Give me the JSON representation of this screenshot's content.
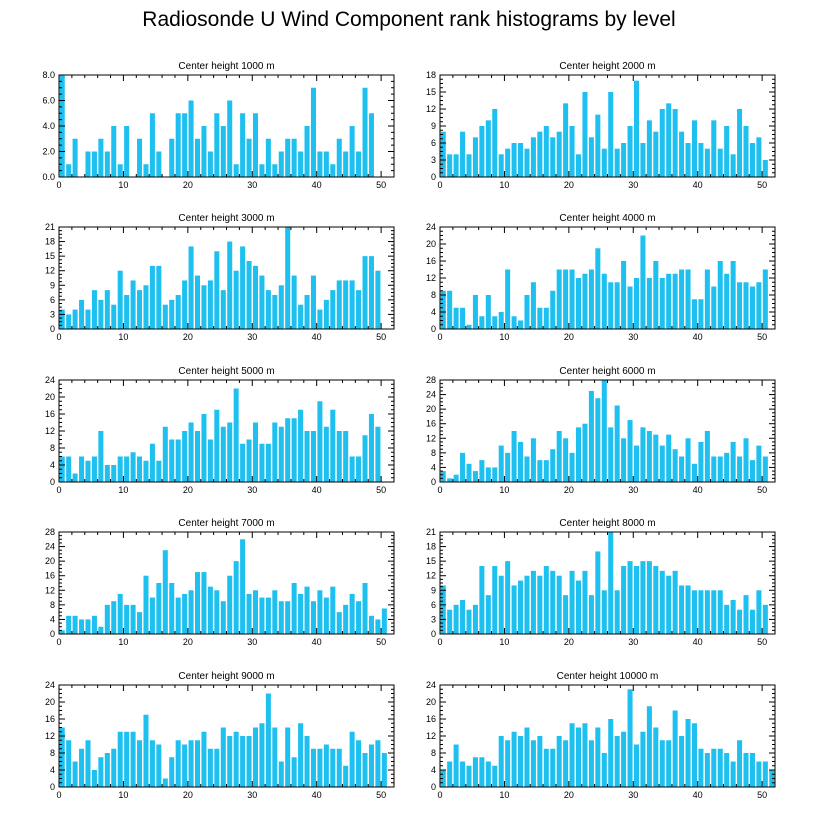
{
  "title": "Radiosonde U Wind Component rank histograms by level",
  "colors": {
    "bar": "#1ec0f0",
    "axis": "#000000",
    "background": "#ffffff"
  },
  "chart_data": [
    {
      "type": "bar",
      "title": "Center height 1000 m",
      "xlim": [
        0,
        52
      ],
      "ylim": [
        0,
        8
      ],
      "xticks": [
        0,
        10,
        20,
        30,
        40,
        50
      ],
      "yticks": [
        "0.0",
        "2.0",
        "4.0",
        "6.0",
        "8.0"
      ],
      "values": [
        8,
        1,
        3,
        0,
        2,
        2,
        3,
        2,
        4,
        1,
        4,
        0,
        3,
        1,
        5,
        2,
        0,
        3,
        5,
        5,
        6,
        3,
        4,
        2,
        5,
        4,
        6,
        1,
        5,
        3,
        5,
        1,
        3,
        1,
        2,
        3,
        3,
        2,
        4,
        7,
        2,
        2,
        1,
        3,
        2,
        4,
        2,
        7,
        5,
        0,
        0
      ]
    },
    {
      "type": "bar",
      "title": "Center height 2000 m",
      "xlim": [
        0,
        52
      ],
      "ylim": [
        0,
        18
      ],
      "xticks": [
        0,
        10,
        20,
        30,
        40,
        50
      ],
      "yticks": [
        "0",
        "3",
        "6",
        "9",
        "12",
        "15",
        "18"
      ],
      "values": [
        8,
        4,
        4,
        8,
        4,
        7,
        9,
        10,
        12,
        4,
        5,
        6,
        6,
        5,
        7,
        8,
        9,
        7,
        8,
        13,
        9,
        4,
        15,
        7,
        11,
        5,
        15,
        5,
        6,
        9,
        17,
        6,
        10,
        8,
        12,
        13,
        12,
        8,
        6,
        10,
        6,
        5,
        10,
        5,
        9,
        4,
        12,
        9,
        6,
        7,
        3
      ]
    },
    {
      "type": "bar",
      "title": "Center height 3000 m",
      "xlim": [
        0,
        52
      ],
      "ylim": [
        0,
        21
      ],
      "xticks": [
        0,
        10,
        20,
        30,
        40,
        50
      ],
      "yticks": [
        "0",
        "3",
        "6",
        "9",
        "12",
        "15",
        "18",
        "21"
      ],
      "values": [
        4,
        3,
        4,
        6,
        4,
        8,
        6,
        8,
        5,
        12,
        7,
        10,
        8,
        9,
        13,
        13,
        5,
        6,
        7,
        10,
        17,
        11,
        9,
        10,
        16,
        8,
        18,
        12,
        17,
        14,
        13,
        11,
        8,
        7,
        9,
        21,
        11,
        5,
        7,
        11,
        4,
        6,
        8,
        10,
        10,
        10,
        8,
        15,
        15,
        12,
        0
      ]
    },
    {
      "type": "bar",
      "title": "Center height 4000 m",
      "xlim": [
        0,
        52
      ],
      "ylim": [
        0,
        24
      ],
      "xticks": [
        0,
        10,
        20,
        30,
        40,
        50
      ],
      "yticks": [
        "0",
        "4",
        "8",
        "12",
        "16",
        "20",
        "24"
      ],
      "values": [
        9,
        9,
        5,
        5,
        1,
        8,
        3,
        8,
        3,
        4,
        14,
        3,
        2,
        8,
        11,
        5,
        5,
        9,
        14,
        14,
        14,
        12,
        13,
        14,
        19,
        13,
        11,
        11,
        16,
        10,
        12,
        22,
        12,
        16,
        12,
        13,
        13,
        14,
        14,
        7,
        7,
        14,
        10,
        16,
        13,
        16,
        11,
        11,
        10,
        11,
        14
      ]
    },
    {
      "type": "bar",
      "title": "Center height 5000 m",
      "xlim": [
        0,
        52
      ],
      "ylim": [
        0,
        24
      ],
      "xticks": [
        0,
        10,
        20,
        30,
        40,
        50
      ],
      "yticks": [
        "0",
        "4",
        "8",
        "12",
        "16",
        "20",
        "24"
      ],
      "values": [
        6,
        6,
        2,
        6,
        5,
        6,
        12,
        4,
        4,
        6,
        6,
        7,
        6,
        5,
        9,
        5,
        13,
        10,
        10,
        12,
        14,
        12,
        16,
        10,
        17,
        13,
        14,
        22,
        9,
        10,
        14,
        9,
        9,
        14,
        13,
        15,
        15,
        17,
        12,
        12,
        19,
        13,
        17,
        12,
        12,
        6,
        6,
        11,
        16,
        13,
        0
      ]
    },
    {
      "type": "bar",
      "title": "Center height 6000 m",
      "xlim": [
        0,
        52
      ],
      "ylim": [
        0,
        28
      ],
      "xticks": [
        0,
        10,
        20,
        30,
        40,
        50
      ],
      "yticks": [
        "0",
        "4",
        "8",
        "12",
        "16",
        "20",
        "24",
        "28"
      ],
      "values": [
        3,
        1,
        2,
        8,
        5,
        3,
        6,
        4,
        4,
        10,
        8,
        14,
        11,
        7,
        12,
        6,
        6,
        9,
        14,
        12,
        8,
        15,
        16,
        25,
        23,
        28,
        15,
        21,
        12,
        17,
        10,
        15,
        14,
        13,
        10,
        13,
        9,
        7,
        12,
        5,
        11,
        14,
        7,
        7,
        8,
        11,
        7,
        12,
        6,
        10,
        7
      ]
    },
    {
      "type": "bar",
      "title": "Center height 7000 m",
      "xlim": [
        0,
        52
      ],
      "ylim": [
        0,
        28
      ],
      "xticks": [
        0,
        10,
        20,
        30,
        40,
        50
      ],
      "yticks": [
        "0",
        "4",
        "8",
        "12",
        "16",
        "20",
        "24",
        "28"
      ],
      "values": [
        1,
        5,
        5,
        4,
        4,
        5,
        2,
        8,
        9,
        11,
        8,
        8,
        6,
        16,
        10,
        14,
        23,
        14,
        10,
        11,
        12,
        17,
        17,
        13,
        12,
        9,
        16,
        20,
        26,
        11,
        12,
        10,
        10,
        12,
        9,
        9,
        14,
        11,
        13,
        9,
        12,
        10,
        13,
        6,
        8,
        11,
        9,
        14,
        5,
        4,
        7
      ]
    },
    {
      "type": "bar",
      "title": "Center height 8000 m",
      "xlim": [
        0,
        52
      ],
      "ylim": [
        0,
        21
      ],
      "xticks": [
        0,
        10,
        20,
        30,
        40,
        50
      ],
      "yticks": [
        "0",
        "3",
        "6",
        "9",
        "12",
        "15",
        "18",
        "21"
      ],
      "values": [
        10,
        5,
        6,
        7,
        5,
        6,
        14,
        8,
        14,
        12,
        15,
        10,
        11,
        12,
        13,
        12,
        14,
        13,
        12,
        8,
        13,
        11,
        13,
        8,
        17,
        9,
        21,
        9,
        14,
        15,
        14,
        15,
        15,
        14,
        13,
        12,
        13,
        10,
        10,
        9,
        9,
        9,
        9,
        9,
        6,
        7,
        5,
        8,
        5,
        9,
        6
      ]
    },
    {
      "type": "bar",
      "title": "Center height 9000 m",
      "xlim": [
        0,
        52
      ],
      "ylim": [
        0,
        24
      ],
      "xticks": [
        0,
        10,
        20,
        30,
        40,
        50
      ],
      "yticks": [
        "0",
        "4",
        "8",
        "12",
        "16",
        "20",
        "24"
      ],
      "values": [
        14,
        11,
        6,
        9,
        11,
        4,
        7,
        8,
        9,
        13,
        13,
        13,
        11,
        17,
        11,
        10,
        2,
        7,
        11,
        10,
        11,
        11,
        13,
        9,
        9,
        14,
        12,
        13,
        12,
        12,
        14,
        15,
        22,
        14,
        6,
        14,
        7,
        15,
        12,
        9,
        9,
        10,
        9,
        9,
        5,
        13,
        11,
        8,
        10,
        11,
        8
      ]
    },
    {
      "type": "bar",
      "title": "Center height 10000 m",
      "xlim": [
        0,
        52
      ],
      "ylim": [
        0,
        24
      ],
      "xticks": [
        0,
        10,
        20,
        30,
        40,
        50
      ],
      "yticks": [
        "0",
        "4",
        "8",
        "12",
        "16",
        "20",
        "24"
      ],
      "values": [
        4,
        6,
        10,
        6,
        5,
        7,
        7,
        6,
        5,
        12,
        11,
        13,
        12,
        14,
        11,
        12,
        9,
        9,
        12,
        11,
        15,
        14,
        15,
        11,
        14,
        8,
        16,
        12,
        13,
        23,
        10,
        13,
        19,
        14,
        11,
        11,
        18,
        12,
        16,
        15,
        9,
        8,
        9,
        9,
        8,
        6,
        11,
        8,
        8,
        6,
        6,
        4
      ]
    }
  ]
}
